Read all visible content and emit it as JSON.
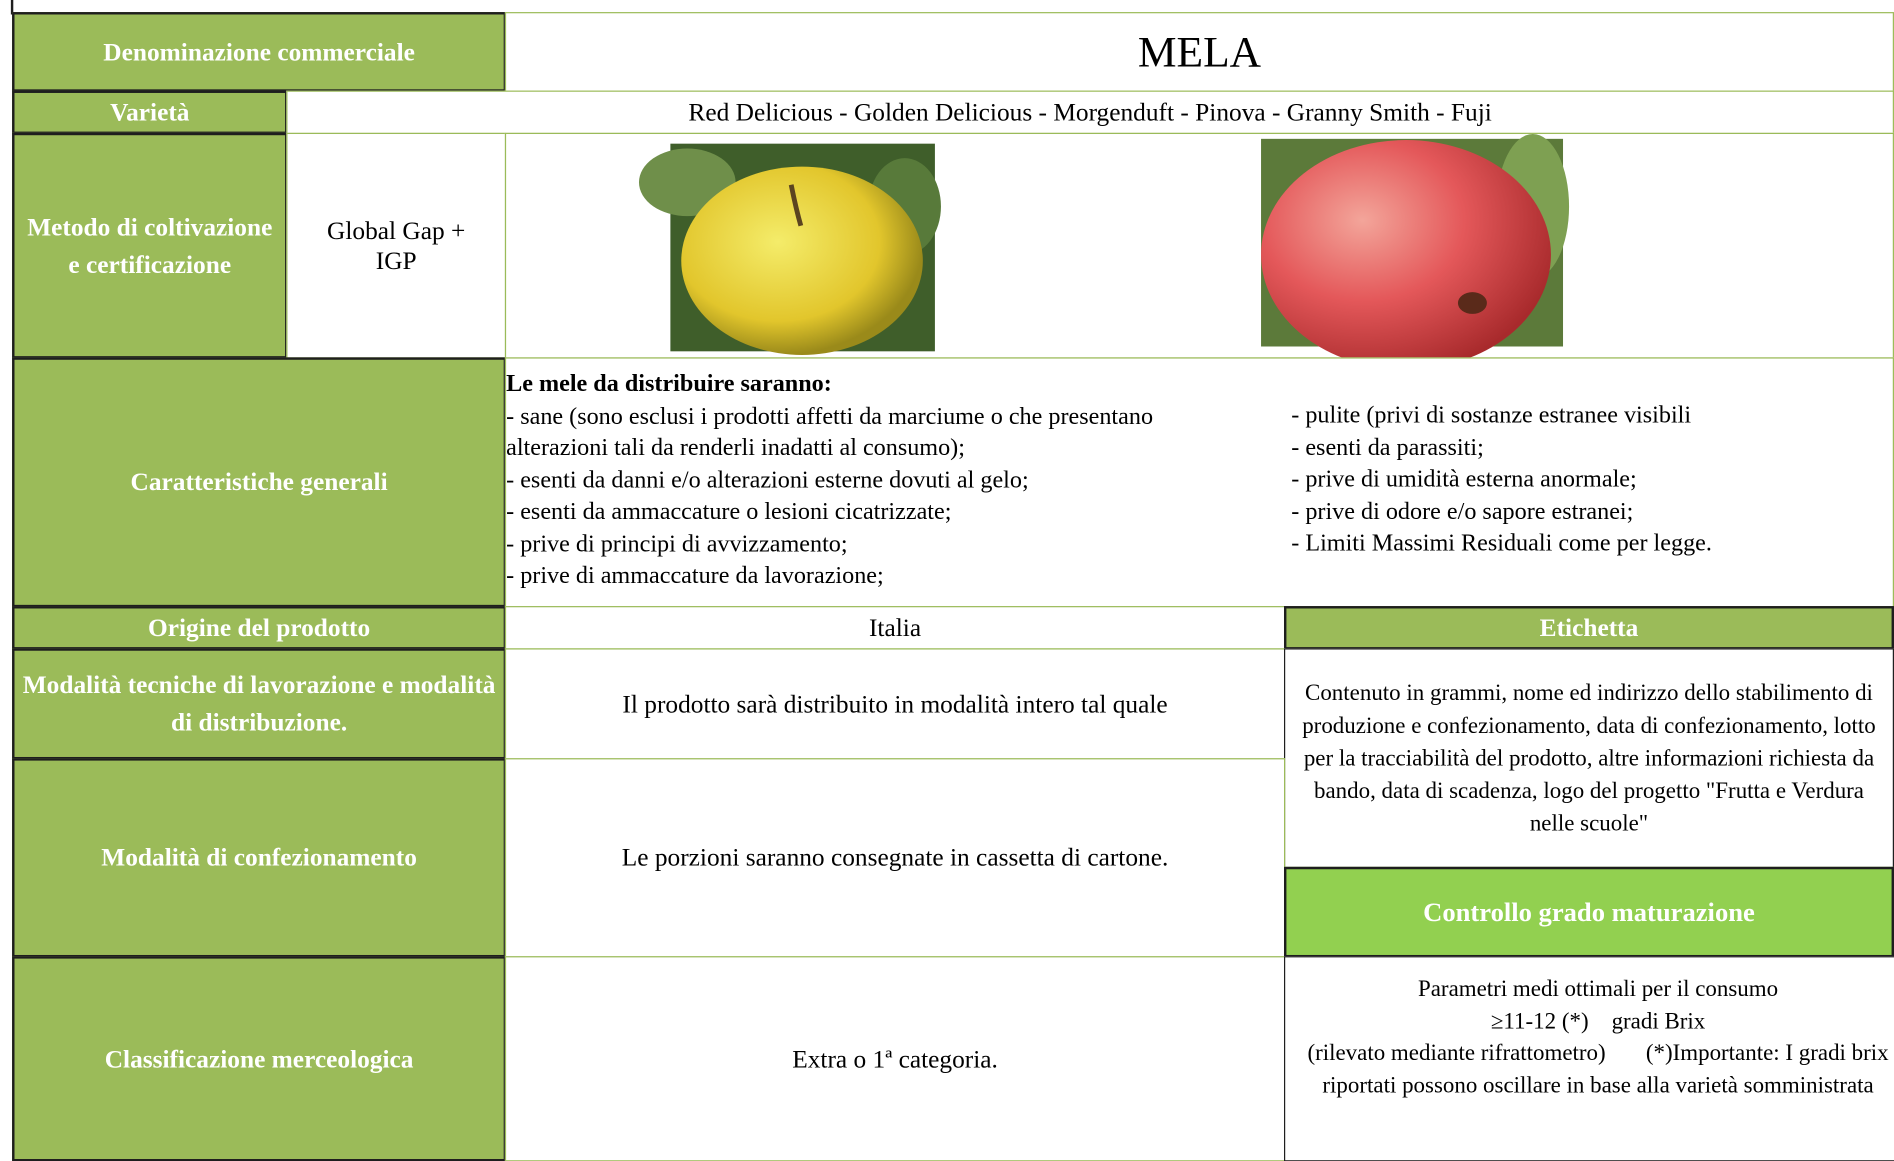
{
  "header": {
    "label": "Denominazione commerciale",
    "title": "MELA"
  },
  "varieties": {
    "label": "Varietà",
    "text": "Red Delicious - Golden Delicious - Morgenduft - Pinova - Granny Smith - Fuji"
  },
  "method": {
    "label": "Metodo di coltivazione e certificazione",
    "text": "Global Gap + IGP"
  },
  "characteristics": {
    "label": "Caratteristiche generali",
    "heading": "Le mele da distribuire saranno:",
    "left": [
      "- sane (sono esclusi i prodotti affetti da marciume o che presentano alterazioni tali da renderli inadatti al consumo);",
      "- esenti da danni e/o alterazioni esterne dovuti al gelo;",
      "- esenti da ammaccature o lesioni cicatrizzate;",
      "- prive di principi di avvizzamento;",
      "- prive di ammaccature da lavorazione;"
    ],
    "right": [
      "- pulite (privi di sostanze estranee visibili",
      "- esenti da parassiti;",
      "- prive di umidità esterna anormale;",
      "- prive di odore e/o sapore estranei;",
      "- Limiti Massimi Residuali come per   legge."
    ]
  },
  "origin": {
    "label": "Origine del prodotto",
    "text": "Italia"
  },
  "processing": {
    "label": "Modalità tecniche di lavorazione e modalità di distribuzione.",
    "text": "Il prodotto sarà distribuito in modalità intero tal quale"
  },
  "packaging": {
    "label": "Modalità di confezionamento",
    "text": "Le porzioni saranno consegnate in cassetta di cartone."
  },
  "classification": {
    "label": "Classificazione merceologica",
    "text": "Extra o 1ª categoria."
  },
  "label_info": {
    "label": "Etichetta",
    "text": "Contenuto in grammi, nome ed indirizzo dello stabilimento di produzione e confezionamento, data di confezionamento, lotto per la tracciabilità del prodotto, altre informazioni richiesta da bando, data di scadenza, logo del progetto \"Frutta e Verdura nelle scuole\""
  },
  "ripeness": {
    "label": "Controllo grado maturazione",
    "lines": [
      "Parametri medi ottimali per il consumo",
      "≥11-12 (*)    gradi Brix",
      "(rilevato mediante rifrattometro)       (*)Importante: I gradi brix riportati possono oscillare in base alla varietà somministrata"
    ]
  }
}
